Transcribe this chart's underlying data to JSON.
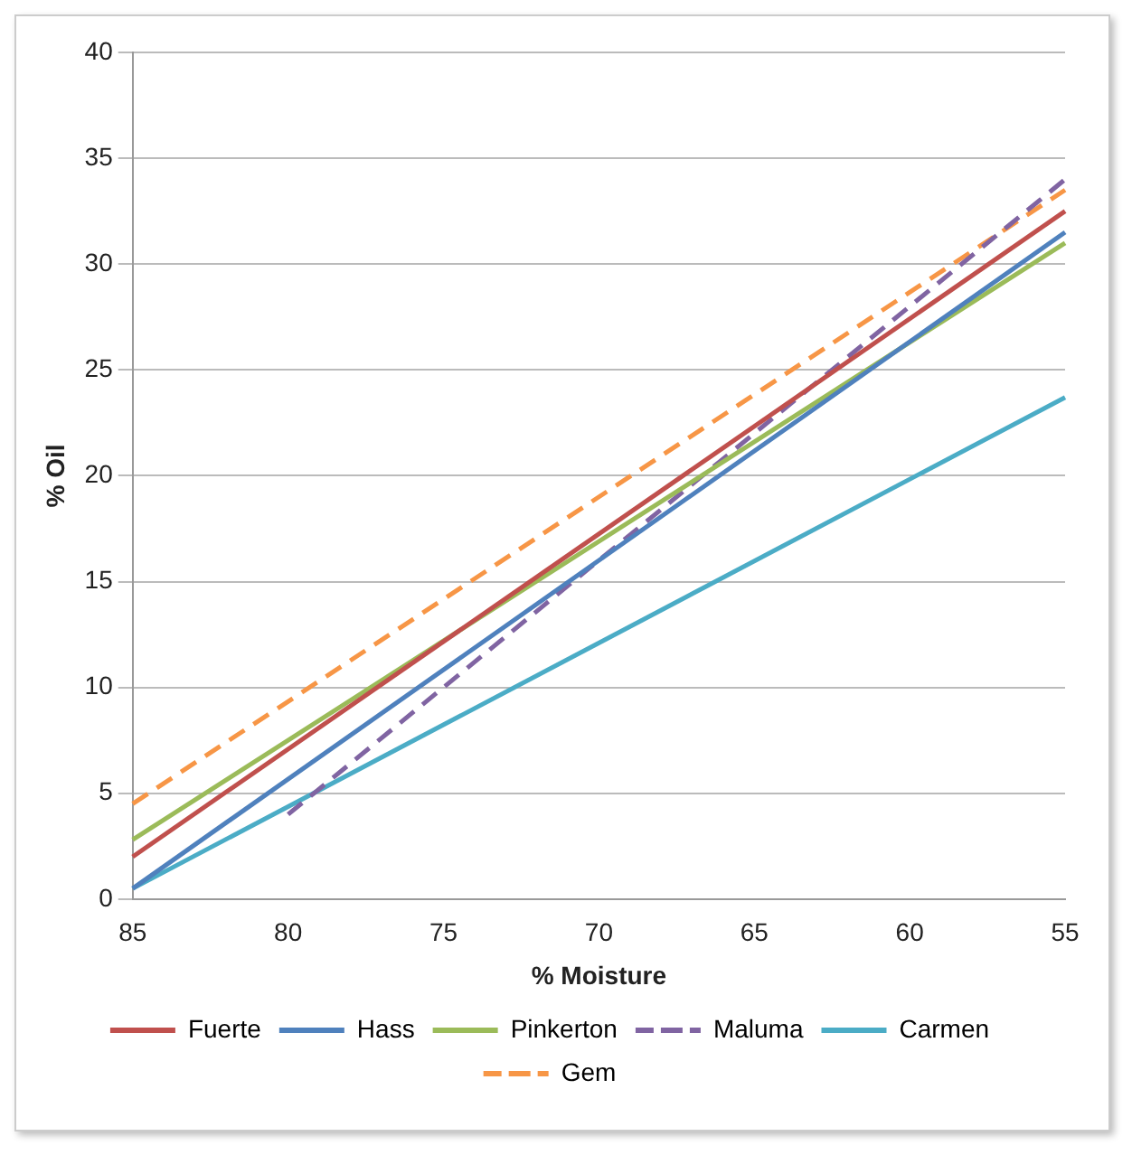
{
  "chart_data": {
    "type": "line",
    "xlabel": "% Moisture",
    "ylabel": "% Oil",
    "categories": [
      "85",
      "80",
      "75",
      "70",
      "65",
      "60",
      "55"
    ],
    "series": [
      {
        "name": "Fuerte",
        "color": "#c0504d",
        "values": [
          2,
          null,
          null,
          null,
          null,
          null,
          32.5
        ]
      },
      {
        "name": "Hass",
        "color": "#4f81bd",
        "values": [
          0.5,
          null,
          null,
          null,
          null,
          null,
          31.5
        ]
      },
      {
        "name": "Pinkerton",
        "color": "#9bbb59",
        "values": [
          2.8,
          null,
          null,
          null,
          null,
          null,
          31
        ]
      },
      {
        "name": "Maluma",
        "color": "#8064a2",
        "line_style": "dashed",
        "values": [
          null,
          4,
          null,
          null,
          null,
          null,
          34
        ]
      },
      {
        "name": "Carmen",
        "color": "#4bacc6",
        "values": [
          0.5,
          null,
          null,
          null,
          null,
          null,
          23.7
        ]
      },
      {
        "name": "Gem",
        "color": "#f79646",
        "line_style": "dashed",
        "values": [
          4.5,
          null,
          null,
          null,
          null,
          null,
          33.5
        ]
      }
    ],
    "ylim": [
      0,
      40
    ],
    "yticks": [
      0,
      5,
      10,
      15,
      20,
      25,
      30,
      35,
      40
    ],
    "grid": "y",
    "legend": "bottom",
    "marker": "none",
    "line_style": "solid"
  }
}
